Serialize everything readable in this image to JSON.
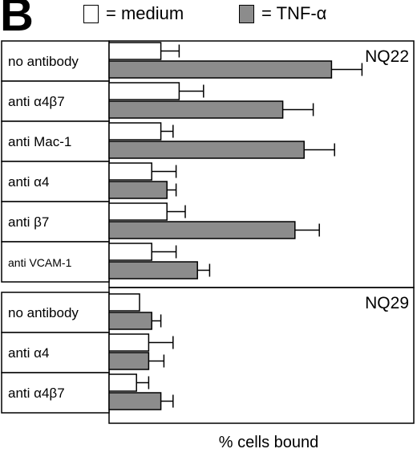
{
  "panel_letter": "B",
  "legend": {
    "medium_label": "= medium",
    "tnf_label": "= TNF-α"
  },
  "colors": {
    "medium": "#ffffff",
    "tnf": "#8c8c8c",
    "stroke": "#000000"
  },
  "chart_data": {
    "type": "bar",
    "orientation": "horizontal",
    "xlabel": "% cells bound",
    "legend_position": "top",
    "grid": false,
    "xlim": [
      0,
      100
    ],
    "panels": [
      {
        "name": "NQ22",
        "categories": [
          "no antibody",
          "anti α4β7",
          "anti Mac-1",
          "anti α4",
          "anti β7",
          "anti VCAM-1"
        ],
        "series": [
          {
            "key": "medium",
            "name": "medium",
            "values": [
              17,
              23,
              17,
              14,
              19,
              14
            ],
            "errors": [
              6,
              8,
              4,
              8,
              6,
              8
            ]
          },
          {
            "key": "tnf",
            "name": "TNF-α",
            "values": [
              73,
              57,
              64,
              19,
              61,
              29
            ],
            "errors": [
              10,
              10,
              10,
              3,
              8,
              4
            ]
          }
        ]
      },
      {
        "name": "NQ29",
        "categories": [
          "no antibody",
          "anti α4",
          "anti α4β7"
        ],
        "series": [
          {
            "key": "medium",
            "name": "medium",
            "values": [
              10,
              13,
              9
            ],
            "errors": [
              0,
              8,
              4
            ]
          },
          {
            "key": "tnf",
            "name": "TNF-α",
            "values": [
              14,
              13,
              17
            ],
            "errors": [
              3,
              5,
              4
            ]
          }
        ]
      }
    ]
  }
}
